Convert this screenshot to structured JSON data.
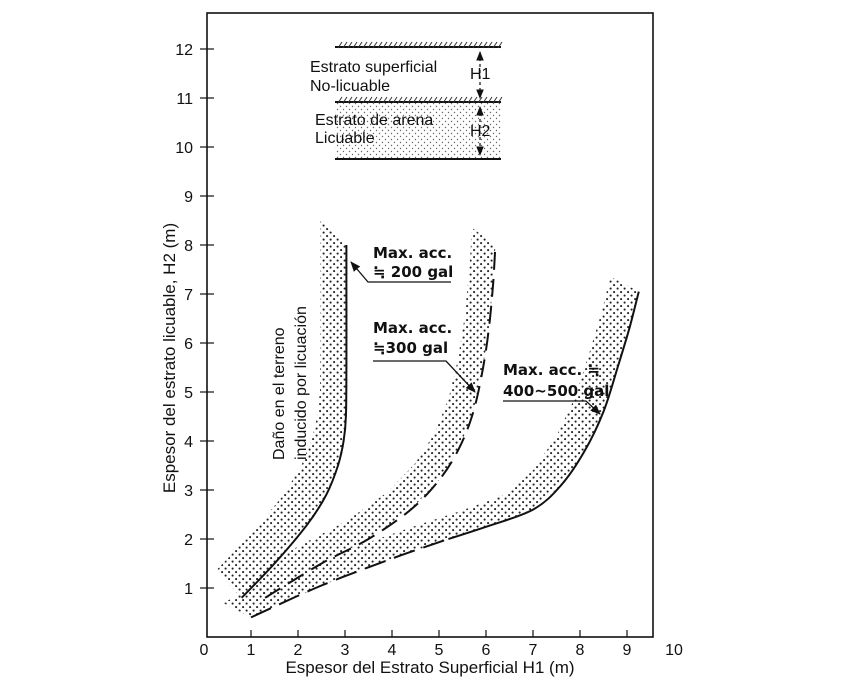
{
  "chart_data": {
    "type": "line",
    "title": "",
    "xlabel": "Espesor del Estrato Superficial  H1 (m)",
    "ylabel": "Espesor del estrato licuable,  H2 (m)",
    "xlim": [
      0,
      10
    ],
    "ylim": [
      0,
      12.6
    ],
    "x_ticks": [
      "0",
      "1",
      "2",
      "3",
      "4",
      "5",
      "6",
      "7",
      "8",
      "9",
      "10"
    ],
    "y_ticks": [
      "1",
      "2",
      "3",
      "4",
      "5",
      "6",
      "7",
      "8",
      "9",
      "10",
      "11",
      "12"
    ],
    "grid": false,
    "series": [
      {
        "name": "Max. acc. ≒ 200 gal",
        "style": "solid",
        "points": [
          [
            0.8,
            0.8
          ],
          [
            1.5,
            1.5
          ],
          [
            2.2,
            2.3
          ],
          [
            2.6,
            2.9
          ],
          [
            2.85,
            3.5
          ],
          [
            2.97,
            4.0
          ],
          [
            3.02,
            4.5
          ],
          [
            3.03,
            5.5
          ],
          [
            3.03,
            7.0
          ],
          [
            3.03,
            8.0
          ]
        ]
      },
      {
        "name": "Max. acc. ≒ 300 gal",
        "style": "dashed",
        "points": [
          [
            1.3,
            0.8
          ],
          [
            2.5,
            1.5
          ],
          [
            3.5,
            2.0
          ],
          [
            4.4,
            2.6
          ],
          [
            5.0,
            3.2
          ],
          [
            5.4,
            3.8
          ],
          [
            5.7,
            4.5
          ],
          [
            5.9,
            5.3
          ],
          [
            6.05,
            6.2
          ],
          [
            6.15,
            7.2
          ],
          [
            6.2,
            8.0
          ]
        ]
      },
      {
        "name": "Max. acc. ≒ 400~500 gal",
        "style": "long-dash-then-solid",
        "dash_until_x": 5.2,
        "points": [
          [
            1.0,
            0.4
          ],
          [
            2.5,
            1.05
          ],
          [
            4.0,
            1.6
          ],
          [
            5.2,
            2.0
          ],
          [
            6.0,
            2.25
          ],
          [
            7.0,
            2.6
          ],
          [
            7.6,
            3.1
          ],
          [
            8.1,
            3.8
          ],
          [
            8.5,
            4.6
          ],
          [
            8.8,
            5.5
          ],
          [
            9.05,
            6.3
          ],
          [
            9.25,
            7.05
          ]
        ]
      }
    ],
    "annotations": [
      {
        "text_lines": [
          "Max. acc.",
          "≒ 200 gal"
        ],
        "target": [
          3.03,
          8.0
        ]
      },
      {
        "text_lines": [
          "Max. acc.",
          "≒300 gal"
        ],
        "target": [
          5.95,
          5.0
        ]
      },
      {
        "text_lines": [
          "Max. acc. ≒",
          "400~500 gal"
        ],
        "target": [
          8.3,
          4.4
        ]
      },
      {
        "text_lines": [
          "Daño en el terreno",
          "inducido por licuación"
        ]
      }
    ],
    "inset": {
      "upper_label_lines": [
        "Estrato superficial",
        "No-licuable"
      ],
      "lower_label_lines": [
        "Estrato de arena",
        "Licuable"
      ],
      "h1": "H1",
      "h2": "H2"
    }
  }
}
